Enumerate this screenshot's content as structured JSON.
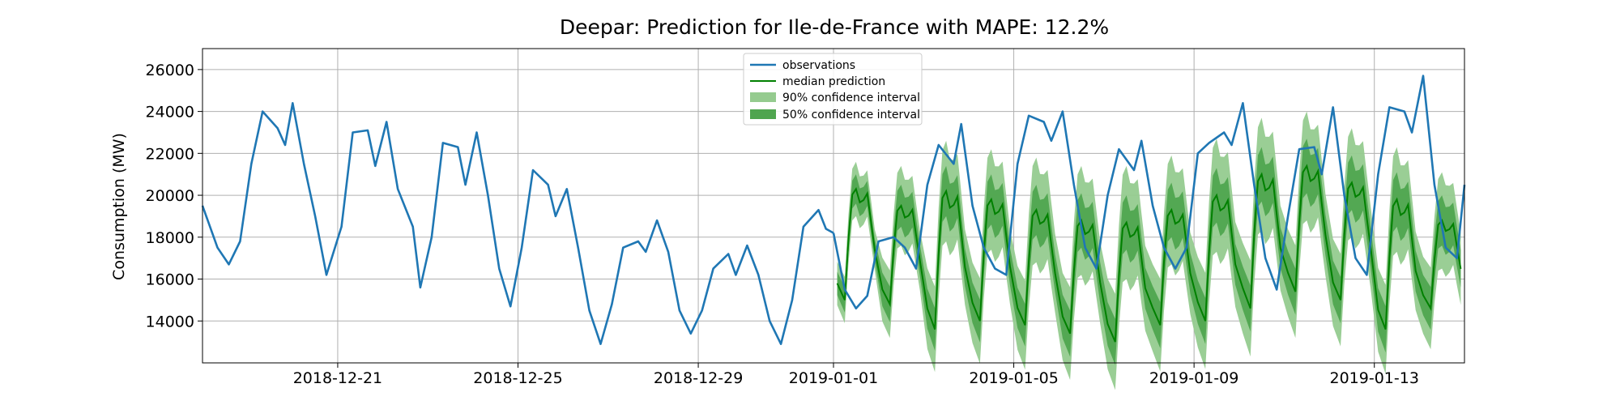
{
  "chart_data": {
    "type": "line",
    "title": "Deepar: Prediction for Ile-de-France with MAPE: 12.2%",
    "xlabel": "",
    "ylabel": "Consumption (MW)",
    "x_range": [
      "2018-12-18",
      "2019-01-15"
    ],
    "ylim": [
      12000,
      27000
    ],
    "y_ticks": [
      14000,
      16000,
      18000,
      20000,
      22000,
      24000,
      26000
    ],
    "y_tick_labels": [
      "14000",
      "16000",
      "18000",
      "20000",
      "22000",
      "24000",
      "26000"
    ],
    "x_ticks": [
      "2018-12-21",
      "2018-12-25",
      "2018-12-29",
      "2019-01-01",
      "2019-01-05",
      "2019-01-09",
      "2019-01-13"
    ],
    "x_tick_labels": [
      "2018-12-21",
      "2018-12-25",
      "2018-12-29",
      "2019-01-01",
      "2019-01-05",
      "2019-01-09",
      "2019-01-13"
    ],
    "grid": true,
    "legend_position": "top-center",
    "forecast_start": "2019-01-01",
    "colors": {
      "observations": "#1f77b4",
      "median": "#008000",
      "ci90": "#95cb8f",
      "ci50": "#4fa54f"
    },
    "legend": [
      {
        "key": "obs",
        "label": "observations"
      },
      {
        "key": "median",
        "label": "median prediction"
      },
      {
        "key": "ci90",
        "label": "90% confidence interval"
      },
      {
        "key": "ci50",
        "label": "50% confidence interval"
      }
    ],
    "observations": {
      "name": "observations",
      "points": [
        [
          "2018-12-18",
          19500
        ],
        [
          "2018-12-18T08",
          17500
        ],
        [
          "2018-12-18T14",
          16700
        ],
        [
          "2018-12-18T20",
          17800
        ],
        [
          "2018-12-19T02",
          21500
        ],
        [
          "2018-12-19T08",
          24000
        ],
        [
          "2018-12-19T16",
          23200
        ],
        [
          "2018-12-19T20",
          22400
        ],
        [
          "2018-12-20T00",
          24400
        ],
        [
          "2018-12-20T06",
          21500
        ],
        [
          "2018-12-20T12",
          19000
        ],
        [
          "2018-12-20T18",
          16200
        ],
        [
          "2018-12-21T02",
          18500
        ],
        [
          "2018-12-21T08",
          23000
        ],
        [
          "2018-12-21T16",
          23100
        ],
        [
          "2018-12-21T20",
          21400
        ],
        [
          "2018-12-22T02",
          23500
        ],
        [
          "2018-12-22T08",
          20300
        ],
        [
          "2018-12-22T16",
          18500
        ],
        [
          "2018-12-22T20",
          15600
        ],
        [
          "2018-12-23T02",
          18000
        ],
        [
          "2018-12-23T08",
          22500
        ],
        [
          "2018-12-23T16",
          22300
        ],
        [
          "2018-12-23T20",
          20500
        ],
        [
          "2018-12-24T02",
          23000
        ],
        [
          "2018-12-24T08",
          20000
        ],
        [
          "2018-12-24T14",
          16500
        ],
        [
          "2018-12-24T20",
          14700
        ],
        [
          "2018-12-25T02",
          17500
        ],
        [
          "2018-12-25T08",
          21200
        ],
        [
          "2018-12-25T16",
          20500
        ],
        [
          "2018-12-25T20",
          19000
        ],
        [
          "2018-12-26T02",
          20300
        ],
        [
          "2018-12-26T08",
          17500
        ],
        [
          "2018-12-26T14",
          14500
        ],
        [
          "2018-12-26T20",
          12900
        ],
        [
          "2018-12-27T02",
          14800
        ],
        [
          "2018-12-27T08",
          17500
        ],
        [
          "2018-12-27T16",
          17800
        ],
        [
          "2018-12-27T20",
          17300
        ],
        [
          "2018-12-28T02",
          18800
        ],
        [
          "2018-12-28T08",
          17300
        ],
        [
          "2018-12-28T14",
          14500
        ],
        [
          "2018-12-28T20",
          13400
        ],
        [
          "2018-12-29T02",
          14500
        ],
        [
          "2018-12-29T08",
          16500
        ],
        [
          "2018-12-29T16",
          17200
        ],
        [
          "2018-12-29T20",
          16200
        ],
        [
          "2018-12-30T02",
          17600
        ],
        [
          "2018-12-30T08",
          16200
        ],
        [
          "2018-12-30T14",
          14000
        ],
        [
          "2018-12-30T20",
          12900
        ],
        [
          "2018-12-31T02",
          15000
        ],
        [
          "2018-12-31T08",
          18500
        ],
        [
          "2018-12-31T16",
          19300
        ],
        [
          "2018-12-31T20",
          18400
        ],
        [
          "2019-01-01",
          18200
        ]
      ]
    },
    "observations_cont": {
      "name": "observations",
      "points": [
        [
          "2019-01-01T00",
          18200
        ],
        [
          "2019-01-01T06",
          15500
        ],
        [
          "2019-01-01T12",
          14600
        ],
        [
          "2019-01-01T18",
          15200
        ],
        [
          "2019-01-02T00",
          17800
        ],
        [
          "2019-01-02T08",
          18000
        ],
        [
          "2019-01-02T14",
          17500
        ],
        [
          "2019-01-02T20",
          16500
        ],
        [
          "2019-01-03T02",
          20500
        ],
        [
          "2019-01-03T08",
          22400
        ],
        [
          "2019-01-03T16",
          21500
        ],
        [
          "2019-01-03T20",
          23400
        ],
        [
          "2019-01-04T02",
          19500
        ],
        [
          "2019-01-04T08",
          17500
        ],
        [
          "2019-01-04T14",
          16500
        ],
        [
          "2019-01-04T20",
          16200
        ],
        [
          "2019-01-05T02",
          21500
        ],
        [
          "2019-01-05T08",
          23800
        ],
        [
          "2019-01-05T16",
          23500
        ],
        [
          "2019-01-05T20",
          22600
        ],
        [
          "2019-01-06T02",
          24000
        ],
        [
          "2019-01-06T08",
          20500
        ],
        [
          "2019-01-06T14",
          17500
        ],
        [
          "2019-01-06T20",
          16500
        ],
        [
          "2019-01-07T02",
          20000
        ],
        [
          "2019-01-07T08",
          22200
        ],
        [
          "2019-01-07T16",
          21200
        ],
        [
          "2019-01-07T20",
          22600
        ],
        [
          "2019-01-08T02",
          19500
        ],
        [
          "2019-01-08T08",
          17500
        ],
        [
          "2019-01-08T14",
          16500
        ],
        [
          "2019-01-08T20",
          17500
        ],
        [
          "2019-01-09T02",
          22000
        ],
        [
          "2019-01-09T08",
          22500
        ],
        [
          "2019-01-09T16",
          23000
        ],
        [
          "2019-01-09T20",
          22400
        ],
        [
          "2019-01-10T02",
          24400
        ],
        [
          "2019-01-10T08",
          20500
        ],
        [
          "2019-01-10T14",
          17000
        ],
        [
          "2019-01-10T20",
          15500
        ],
        [
          "2019-01-11T02",
          19000
        ],
        [
          "2019-01-11T08",
          22200
        ],
        [
          "2019-01-11T16",
          22300
        ],
        [
          "2019-01-11T20",
          21000
        ],
        [
          "2019-01-12T02",
          24200
        ],
        [
          "2019-01-12T08",
          20000
        ],
        [
          "2019-01-12T14",
          17000
        ],
        [
          "2019-01-12T20",
          16200
        ],
        [
          "2019-01-13T02",
          21000
        ],
        [
          "2019-01-13T08",
          24200
        ],
        [
          "2019-01-13T16",
          24000
        ],
        [
          "2019-01-13T20",
          23000
        ],
        [
          "2019-01-14T02",
          25700
        ],
        [
          "2019-01-14T08",
          20500
        ],
        [
          "2019-01-14T14",
          17500
        ],
        [
          "2019-01-14T20",
          17000
        ],
        [
          "2019-01-15T00",
          20500
        ]
      ]
    },
    "forecast": {
      "name": "median prediction",
      "days": [
        "2019-01-01",
        "2019-01-02",
        "2019-01-03",
        "2019-01-04",
        "2019-01-05",
        "2019-01-06",
        "2019-01-07",
        "2019-01-08",
        "2019-01-09",
        "2019-01-10",
        "2019-01-11",
        "2019-01-12",
        "2019-01-13",
        "2019-01-14"
      ],
      "day_peak": [
        20300,
        19500,
        20200,
        19800,
        19300,
        18800,
        18700,
        19300,
        20000,
        21000,
        21400,
        20600,
        19800,
        18800
      ],
      "day_trough": [
        15000,
        14800,
        13600,
        14000,
        13800,
        13400,
        13000,
        13800,
        14000,
        14600,
        15400,
        15000,
        13600,
        14600
      ],
      "ci50_halfwidth": [
        700,
        1000,
        1200,
        1200,
        1200,
        1300,
        1300,
        1300,
        1300,
        1300,
        1300,
        1300,
        1300,
        1200
      ],
      "ci90_halfwidth": [
        1300,
        1900,
        2400,
        2400,
        2500,
        2600,
        2700,
        2600,
        2700,
        2700,
        2600,
        2600,
        2500,
        2300
      ]
    }
  }
}
